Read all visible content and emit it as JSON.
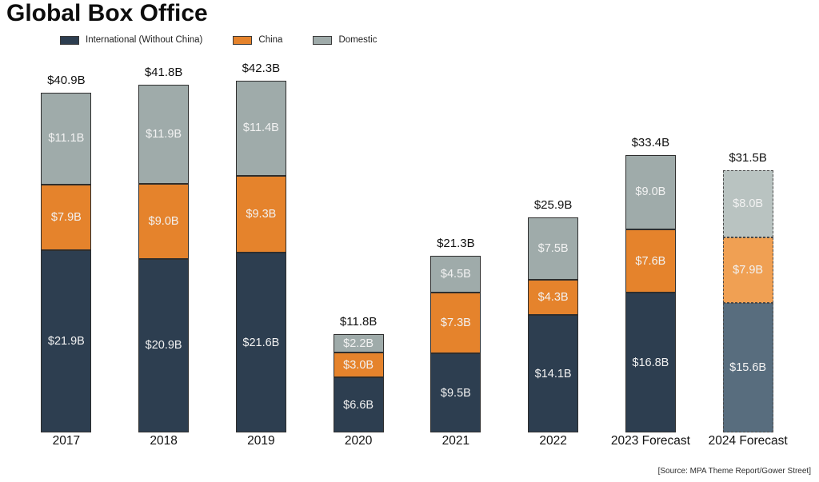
{
  "chart_data": {
    "type": "bar",
    "stacked": true,
    "title": "Global Box Office",
    "source": "[Source: MPA Theme Report/Gower Street]",
    "categories": [
      "2017",
      "2018",
      "2019",
      "2020",
      "2021",
      "2022",
      "2023 Forecast",
      "2024 Forecast"
    ],
    "series": [
      {
        "name": "International (Without China)",
        "values": [
          21.9,
          20.9,
          21.6,
          6.6,
          9.5,
          14.1,
          16.8,
          15.6
        ],
        "labels": [
          "$21.9B",
          "$20.9B",
          "$21.6B",
          "$6.6B",
          "$9.5B",
          "$14.1B",
          "$16.8B",
          "$15.6B"
        ]
      },
      {
        "name": "China",
        "values": [
          7.9,
          9.0,
          9.3,
          3.0,
          7.3,
          4.3,
          7.6,
          7.9
        ],
        "labels": [
          "$7.9B",
          "$9.0B",
          "$9.3B",
          "$3.0B",
          "$7.3B",
          "$4.3B",
          "$7.6B",
          "$7.9B"
        ]
      },
      {
        "name": "Domestic",
        "values": [
          11.1,
          11.9,
          11.4,
          2.2,
          4.5,
          7.5,
          9.0,
          8.0
        ],
        "labels": [
          "$11.1B",
          "$11.9B",
          "$11.4B",
          "$2.2B",
          "$4.5B",
          "$7.5B",
          "$9.0B",
          "$8.0B"
        ]
      }
    ],
    "totals": {
      "values": [
        40.9,
        41.8,
        42.3,
        11.8,
        21.3,
        25.9,
        33.4,
        31.5
      ],
      "labels": [
        "$40.9B",
        "$41.8B",
        "$42.3B",
        "$11.8B",
        "$21.3B",
        "$25.9B",
        "$33.4B",
        "$31.5B"
      ]
    },
    "dashed_category_index": 7,
    "ylim": [
      0,
      45
    ],
    "colors": {
      "international": "#2d3e50",
      "china": "#e5832c",
      "domestic": "#9fabaa",
      "international_forecast": "#586d7e",
      "china_forecast": "#f0a053",
      "domestic_forecast": "#b9c3c1",
      "segment_border": "#2e2e2e",
      "dashed_border": "#4a4a4a",
      "segment_text": "#f2f2f2",
      "label_text": "#111111"
    },
    "legend_position": "top-left",
    "grid": false
  }
}
